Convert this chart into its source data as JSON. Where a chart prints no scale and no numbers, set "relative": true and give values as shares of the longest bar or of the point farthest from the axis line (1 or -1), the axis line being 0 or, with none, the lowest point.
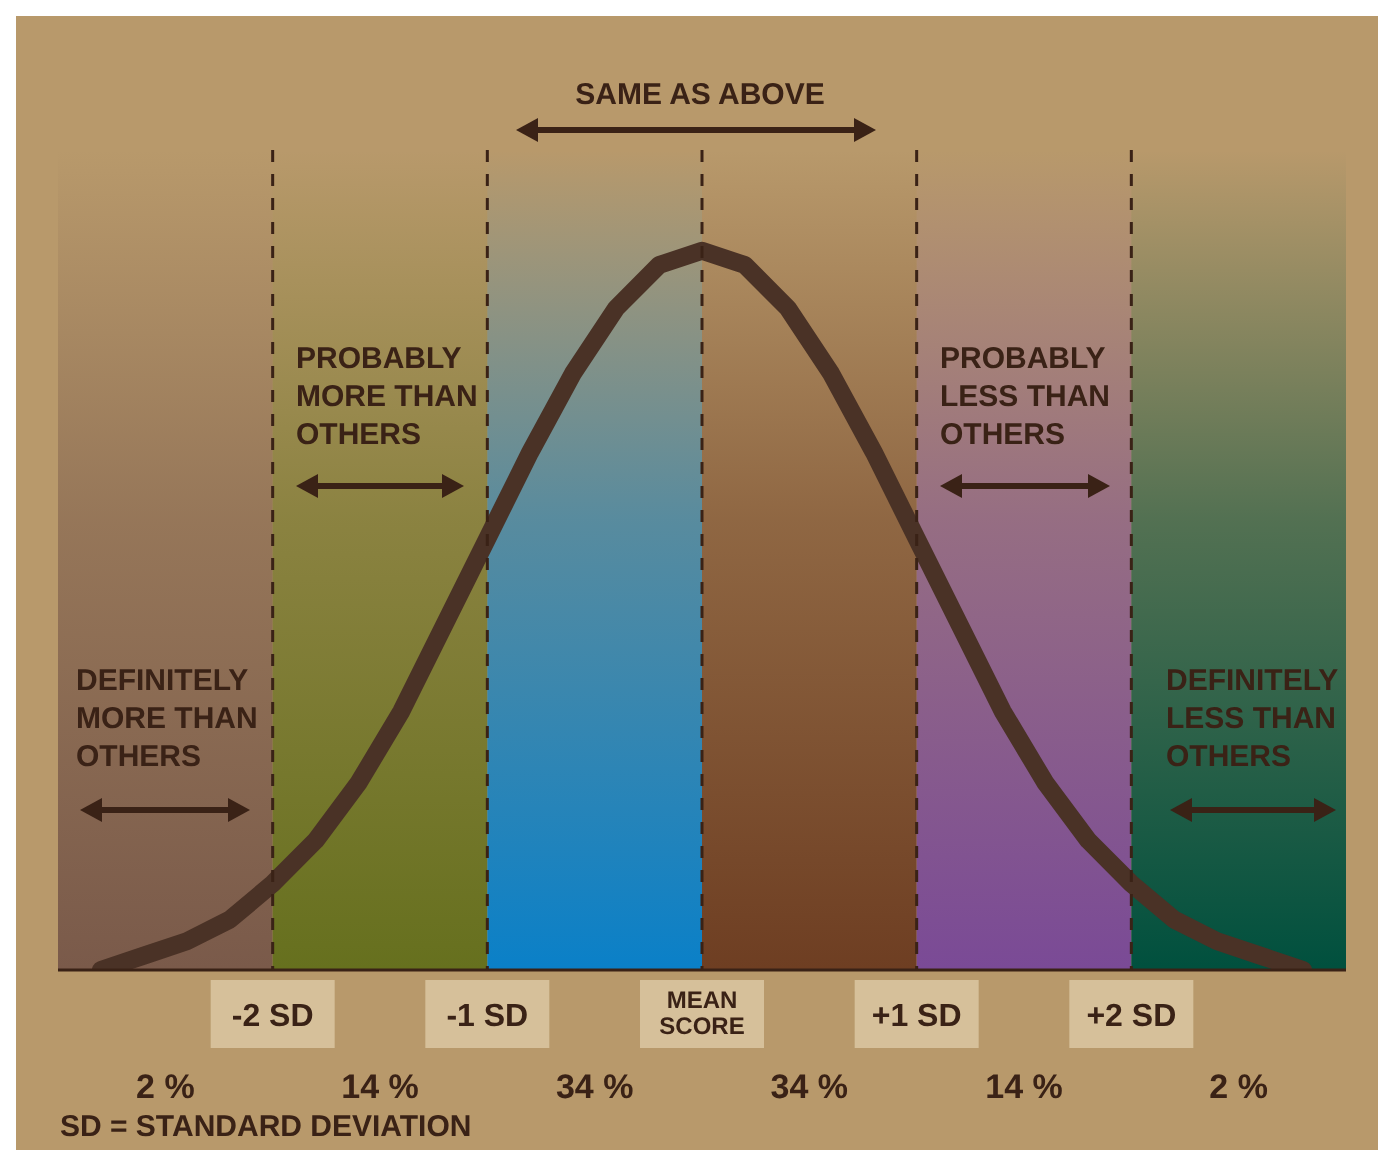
{
  "chart_data": {
    "type": "line",
    "relative": true,
    "tick_labels": "x",
    "marker": "none",
    "grid": "x",
    "xlim": [
      -3,
      3
    ],
    "xticks": [
      {
        "value": -2,
        "label": "-2 SD"
      },
      {
        "value": -1,
        "label": "-1 SD"
      },
      {
        "value": 0,
        "label": "MEAN SCORE"
      },
      {
        "value": 1,
        "label": "+1 SD"
      },
      {
        "value": 2,
        "label": "+2 SD"
      }
    ],
    "x": [
      -2.8,
      -2.6,
      -2.4,
      -2.2,
      -2,
      -1.8,
      -1.6,
      -1.4,
      -1.2,
      -1,
      -0.8,
      -0.6,
      -0.4,
      -0.2,
      0,
      0.2,
      0.4,
      0.6,
      0.8,
      1,
      1.2,
      1.4,
      1.6,
      1.8,
      2,
      2.2,
      2.4,
      2.6,
      2.8
    ],
    "series": [
      {
        "color": "#4a3226",
        "values": [
          0,
          0.02,
          0.04,
          0.07,
          0.12,
          0.18,
          0.26,
          0.36,
          0.48,
          0.6,
          0.72,
          0.83,
          0.92,
          0.98,
          1,
          0.98,
          0.92,
          0.83,
          0.72,
          0.6,
          0.48,
          0.36,
          0.26,
          0.18,
          0.12,
          0.07,
          0.04,
          0.02,
          0
        ]
      }
    ],
    "bands": [
      {
        "axis": "x",
        "from": -3,
        "to": -2,
        "label": "2 %",
        "color": "#7a5a4a"
      },
      {
        "axis": "x",
        "from": -2,
        "to": -1,
        "label": "14 %",
        "color": "#66701e"
      },
      {
        "axis": "x",
        "from": -1,
        "to": 0,
        "label": "34 %",
        "color": "#0a80c8"
      },
      {
        "axis": "x",
        "from": 0,
        "to": 1,
        "label": "34 %",
        "color": "#6e3e22"
      },
      {
        "axis": "x",
        "from": 1,
        "to": 2,
        "label": "14 %",
        "color": "#7a4a96"
      },
      {
        "axis": "x",
        "from": 2,
        "to": 3,
        "label": "2 %",
        "color": "#00503e"
      }
    ],
    "annotations": [
      "SAME AS ABOVE",
      "PROBABLY MORE THAN OTHERS",
      "PROBABLY LESS THAN OTHERS",
      "DEFINITELY MORE THAN OTHERS",
      "DEFINITELY LESS THAN OTHERS",
      "SD = STANDARD DEVIATION"
    ]
  }
}
